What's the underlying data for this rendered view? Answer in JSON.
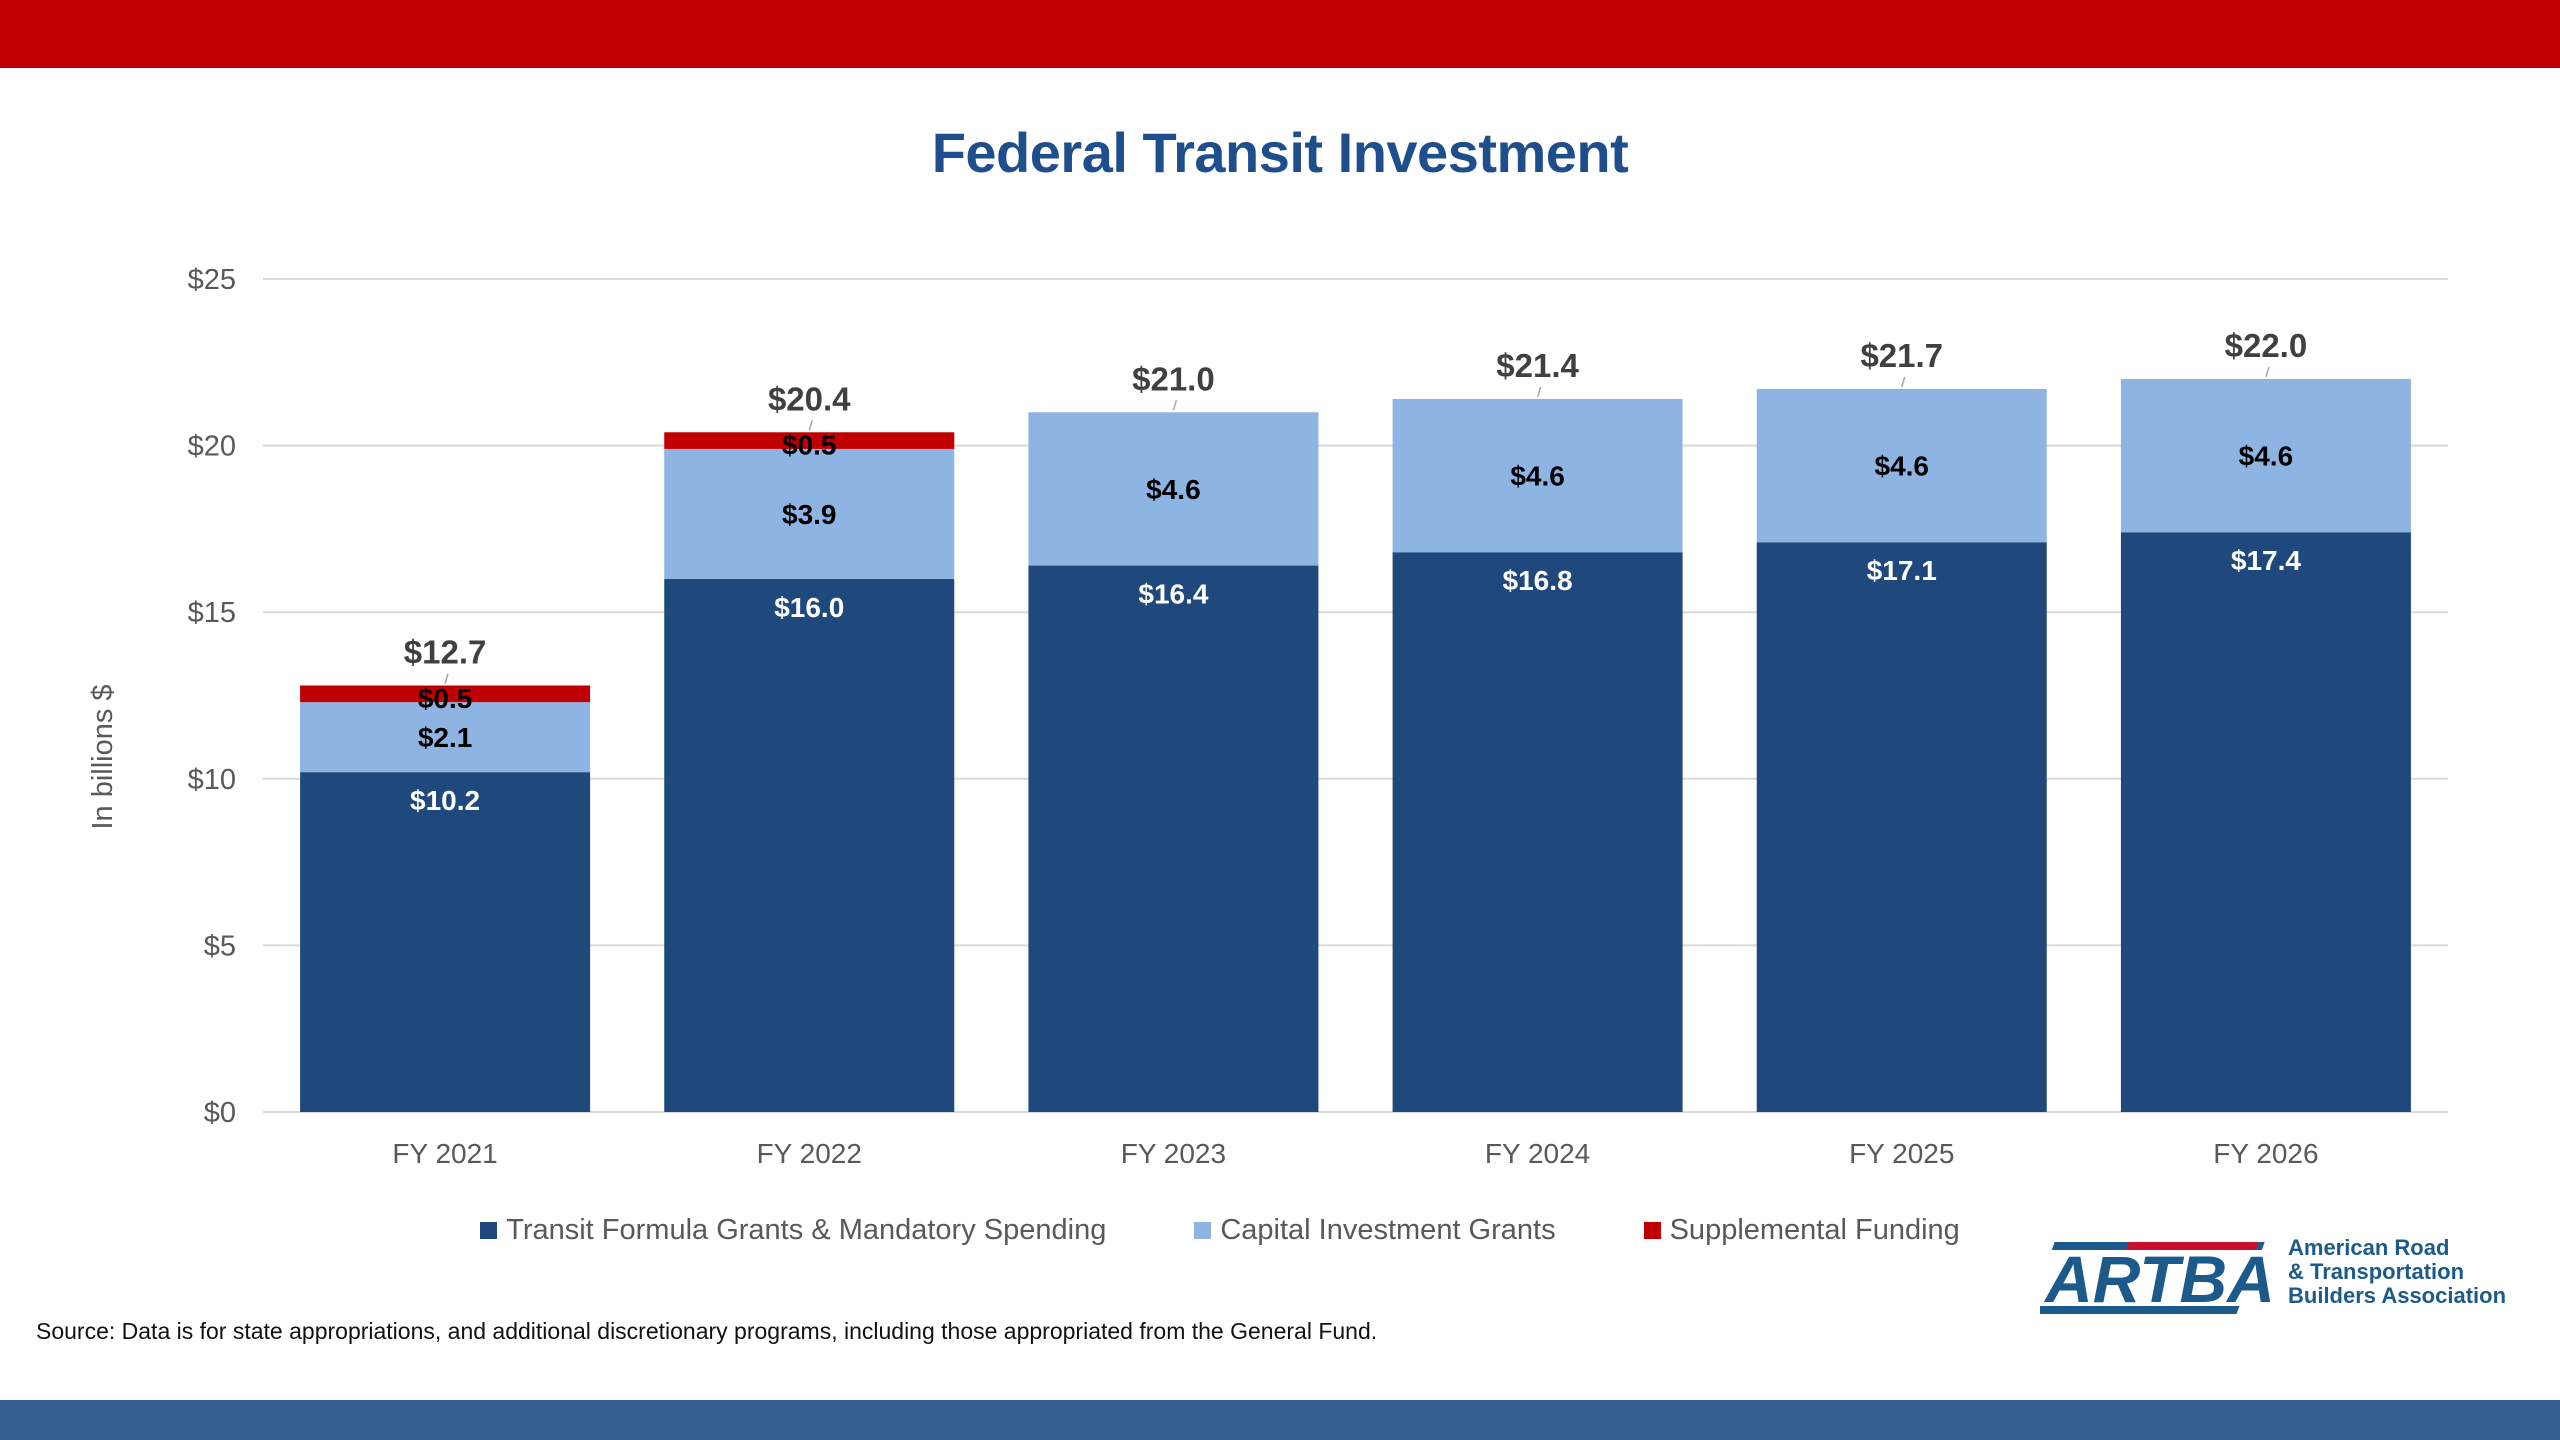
{
  "header": {
    "title": "Federal Transit Investment"
  },
  "footer": {
    "source": "Source: Data is for state appropriations, and additional discretionary programs, including those appropriated from the General Fund."
  },
  "logo": {
    "mark": "ARTBA",
    "lines": [
      "American Road",
      "& Transportation",
      "Builders Association"
    ],
    "colors": {
      "blue": "#1c5a8c",
      "red": "#c8102e"
    }
  },
  "theme": {
    "top_bar": "#c00000",
    "bottom_bar": "#365f91",
    "title_color": "#1f4e8c"
  },
  "chart_data": {
    "type": "bar",
    "stacked": true,
    "title": "Federal Transit Investment",
    "xlabel": "",
    "ylabel": "In billions $",
    "ylim": [
      0,
      25
    ],
    "yticks": [
      0,
      5,
      10,
      15,
      20,
      25
    ],
    "ytick_labels": [
      "$0",
      "$5",
      "$10",
      "$15",
      "$20",
      "$25"
    ],
    "grid": true,
    "legend_position": "bottom",
    "categories": [
      "FY 2021",
      "FY 2022",
      "FY 2023",
      "FY 2024",
      "FY 2025",
      "FY 2026"
    ],
    "series": [
      {
        "name": "Transit Formula Grants & Mandatory Spending",
        "color": "#1f497d",
        "label_color": "#ffffff",
        "values": [
          10.2,
          16.0,
          16.4,
          16.8,
          17.1,
          17.4
        ],
        "labels": [
          "$10.2",
          "$16.0",
          "$16.4",
          "$16.8",
          "$17.1",
          "$17.4"
        ]
      },
      {
        "name": "Capital Investment Grants",
        "color": "#8eb4e3",
        "label_color": "#000000",
        "values": [
          2.1,
          3.9,
          4.6,
          4.6,
          4.6,
          4.6
        ],
        "labels": [
          "$2.1",
          "$3.9",
          "$4.6",
          "$4.6",
          "$4.6",
          "$4.6"
        ]
      },
      {
        "name": "Supplemental Funding",
        "color": "#c00000",
        "label_color": "#000000",
        "values": [
          0.5,
          0.5,
          0,
          0,
          0,
          0
        ],
        "labels": [
          "$0.5",
          "$0.5",
          "",
          "",
          "",
          ""
        ]
      }
    ],
    "totals": [
      12.7,
      20.4,
      21.0,
      21.4,
      21.7,
      22.0
    ],
    "total_labels": [
      "$12.7",
      "$20.4",
      "$21.0",
      "$21.4",
      "$21.7",
      "$22.0"
    ]
  }
}
